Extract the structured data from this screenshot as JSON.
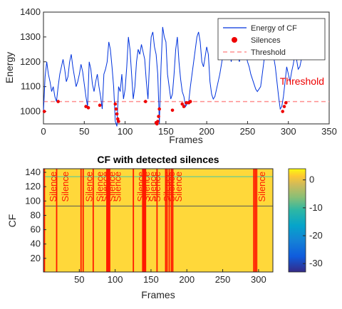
{
  "colors": {
    "energy": "#0033dd",
    "silence": "#ee0000",
    "threshold": "#ff9090",
    "heat_bg": "#ffd83a",
    "stripe": "#ff1a00",
    "hline_top": "#3cc8aa",
    "hline_mid": "#555555"
  },
  "chart_data": [
    {
      "type": "line",
      "title": "",
      "xlabel": "Frames",
      "ylabel": "Energy",
      "xlim": [
        0,
        350
      ],
      "ylim": [
        950,
        1400
      ],
      "xticks": [
        0,
        50,
        100,
        150,
        200,
        250,
        300,
        350
      ],
      "yticks": [
        1000,
        1100,
        1200,
        1300,
        1400
      ],
      "threshold": 1040,
      "threshold_label": "Threshold",
      "legend": {
        "placement": "top-right",
        "entries": [
          "Energy of CF",
          "Silences",
          "Threshold"
        ]
      },
      "series": [
        {
          "name": "Energy of CF",
          "x": [
            0,
            2,
            4,
            6,
            8,
            10,
            12,
            14,
            16,
            18,
            20,
            22,
            24,
            26,
            28,
            30,
            32,
            34,
            36,
            38,
            40,
            42,
            44,
            46,
            48,
            50,
            52,
            54,
            56,
            58,
            60,
            62,
            64,
            66,
            68,
            70,
            72,
            74,
            76,
            78,
            80,
            82,
            84,
            86,
            88,
            90,
            92,
            94,
            96,
            98,
            100,
            102,
            104,
            106,
            108,
            110,
            112,
            114,
            116,
            118,
            120,
            122,
            124,
            126,
            128,
            130,
            132,
            134,
            136,
            138,
            140,
            142,
            144,
            146,
            148,
            150,
            152,
            154,
            156,
            158,
            160,
            162,
            164,
            166,
            168,
            170,
            172,
            174,
            176,
            178,
            180,
            182,
            184,
            186,
            188,
            190,
            192,
            194,
            196,
            198,
            200,
            202,
            204,
            206,
            208,
            210,
            212,
            214,
            216,
            218,
            220,
            222,
            224,
            226,
            228,
            230,
            232,
            234,
            236,
            238,
            240,
            242,
            244,
            246,
            248,
            250,
            252,
            254,
            256,
            258,
            260,
            262,
            264,
            266,
            268,
            270,
            272,
            274,
            276,
            278,
            280,
            282,
            284,
            286,
            288,
            290,
            292,
            294,
            296,
            298,
            300,
            302,
            304,
            306,
            308,
            310,
            312,
            314,
            316,
            318,
            320
          ],
          "values": [
            1000,
            1140,
            1200,
            1150,
            1120,
            1080,
            1100,
            1060,
            1040,
            1100,
            1150,
            1180,
            1210,
            1170,
            1120,
            1140,
            1200,
            1230,
            1180,
            1140,
            1100,
            1120,
            1150,
            1190,
            1160,
            1110,
            1060,
            1020,
            1200,
            1170,
            1110,
            1080,
            1120,
            1150,
            1100,
            1060,
            1010,
            1150,
            1170,
            1200,
            1280,
            1250,
            1180,
            1100,
            960,
            940,
            1100,
            1080,
            1150,
            1050,
            1090,
            1180,
            1300,
            1250,
            1150,
            1050,
            1100,
            1200,
            1250,
            1230,
            1270,
            1240,
            1210,
            1120,
            1050,
            1200,
            1300,
            1320,
            1260,
            1230,
            1150,
            950,
            1180,
            1340,
            1300,
            1280,
            1150,
            1100,
            1050,
            1070,
            1150,
            1250,
            1300,
            1200,
            1130,
            1080,
            1060,
            1020,
            1030,
            1040,
            1100,
            1150,
            1200,
            1250,
            1300,
            1320,
            1280,
            1200,
            1180,
            1220,
            1260,
            1230,
            1120,
            1070,
            1050,
            1060,
            1090,
            1120,
            1150,
            1190,
            1230,
            1260,
            1280,
            1300,
            1260,
            1200,
            1250,
            1280,
            1260,
            1230,
            1200,
            1240,
            1270,
            1260,
            1230,
            1200,
            1180,
            1150,
            1130,
            1110,
            1090,
            1080,
            1090,
            1100,
            1150,
            1200,
            1250,
            1280,
            1300,
            1290,
            1270,
            1220,
            1180,
            1120,
            1060,
            1010,
            1020,
            1060,
            1120,
            1180,
            1150,
            1120,
            1160,
            1190,
            1230,
            1210,
            1170,
            1180,
            1210,
            1240,
            1260
          ]
        },
        {
          "name": "Silences",
          "x": [
            1,
            18,
            52,
            55,
            69,
            88,
            89,
            90,
            91,
            92,
            125,
            138,
            139,
            140,
            141,
            142,
            158,
            170,
            172,
            175,
            178,
            180,
            293,
            295,
            297
          ],
          "values": [
            1000,
            1040,
            1020,
            1015,
            1025,
            1030,
            1010,
            990,
            970,
            960,
            1040,
            955,
            950,
            960,
            980,
            1010,
            1005,
            1030,
            1020,
            1035,
            1035,
            1040,
            1000,
            1020,
            1035
          ]
        }
      ]
    },
    {
      "type": "heatmap",
      "title": "CF with detected silences",
      "xlabel": "Frames",
      "ylabel": "CF",
      "xlim": [
        0,
        320
      ],
      "ylim": [
        1,
        145
      ],
      "xticks": [
        50,
        100,
        150,
        200,
        250,
        300
      ],
      "yticks": [
        20,
        40,
        60,
        80,
        100,
        120,
        140
      ],
      "colorbar": {
        "range": [
          -33,
          4
        ],
        "ticks": [
          0,
          -10,
          -20,
          -30
        ]
      },
      "silence_frames": [
        1,
        18,
        52,
        55,
        69,
        88,
        89,
        90,
        91,
        92,
        125,
        138,
        139,
        140,
        141,
        142,
        158,
        170,
        172,
        175,
        178,
        180,
        293,
        295,
        297
      ],
      "horizontal_lines": [
        134,
        93
      ],
      "labels": [
        {
          "text": "Silence",
          "frame": 18
        },
        {
          "text": "Silence",
          "frame": 35
        },
        {
          "text": "Silence",
          "frame": 68
        },
        {
          "text": "Silence",
          "frame": 83
        },
        {
          "text": "Silence",
          "frame": 91
        },
        {
          "text": "Silence",
          "frame": 100
        },
        {
          "text": "Silence",
          "frame": 108
        },
        {
          "text": "Silence",
          "frame": 140
        },
        {
          "text": "Silence",
          "frame": 148
        },
        {
          "text": "Silence",
          "frame": 157
        },
        {
          "text": "Silence",
          "frame": 163
        },
        {
          "text": "Silence",
          "frame": 177
        },
        {
          "text": "Silence",
          "frame": 183
        },
        {
          "text": "Silence",
          "frame": 193
        },
        {
          "text": "Silence",
          "frame": 309
        }
      ]
    }
  ]
}
